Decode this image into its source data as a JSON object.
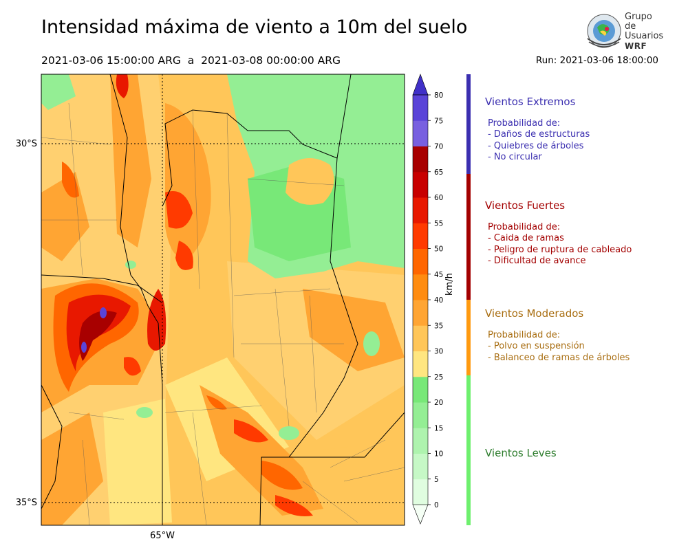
{
  "header": {
    "title": "Intensidad máxima de viento a 10m del suelo",
    "period": "2021-03-06 15:00:00 ARG  a  2021-03-08 00:00:00 ARG",
    "run": "Run: 2021-03-06 18:00:00"
  },
  "logo": {
    "line1": "Grupo de",
    "line2": "Usuarios",
    "line3": "WRF"
  },
  "map": {
    "lat_labels": [
      "30°S",
      "35°S"
    ],
    "lon_labels": [
      "65°W"
    ]
  },
  "colorbar": {
    "unit": "km/h",
    "ticks": [
      "0",
      "5",
      "10",
      "15",
      "20",
      "25",
      "30",
      "35",
      "40",
      "45",
      "50",
      "55",
      "60",
      "65",
      "70",
      "75",
      "80"
    ],
    "colors": [
      "#f5fff5",
      "#e0fde0",
      "#c6f8c6",
      "#aef3ae",
      "#94ee94",
      "#78e878",
      "#ffe680",
      "#ffc659",
      "#ffa533",
      "#ff8c10",
      "#ff6600",
      "#ff3a00",
      "#e81800",
      "#c80000",
      "#a80000",
      "#7860e0",
      "#5a44d8",
      "#4030c8"
    ]
  },
  "legend": [
    {
      "title": "Vientos Extremos",
      "color": "#3b2fb0",
      "items": [
        "Probabilidad de:",
        "- Daños de estructuras",
        "- Quiebres de árboles",
        "- No circular"
      ]
    },
    {
      "title": "Vientos Fuertes",
      "color": "#a30000",
      "items": [
        "Probabilidad de:",
        "- Caida de ramas",
        "- Peligro de ruptura de cableado",
        "- Dificultad de avance"
      ]
    },
    {
      "title": "Vientos Moderados",
      "color": "#a86d10",
      "items": [
        "Probabilidad de:",
        "- Polvo en suspensión",
        "- Balanceo de ramas de árboles"
      ]
    },
    {
      "title": "Vientos Leves",
      "color": "#2e7d2e",
      "items": []
    }
  ],
  "legend_bar_colors": [
    "#3b2fb0",
    "#a30000",
    "#ff9a10",
    "#6ef06e"
  ]
}
